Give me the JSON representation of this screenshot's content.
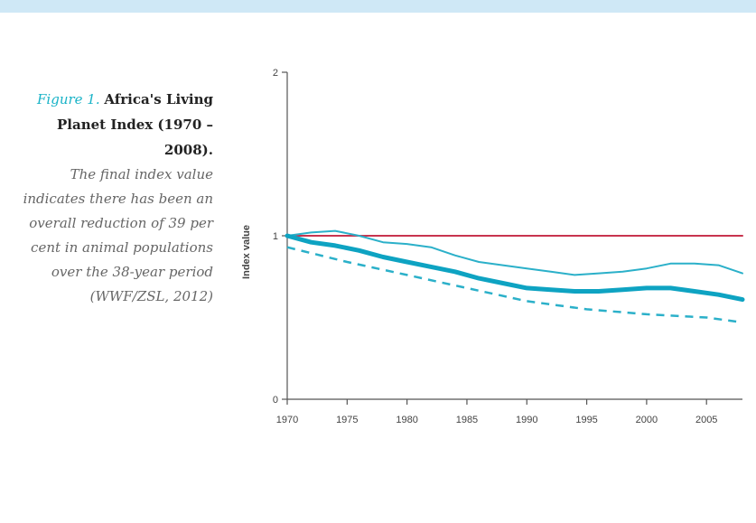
{
  "caption": {
    "figure_label": "Figure 1.",
    "title": "Africa's Living Planet Index (1970 – 2008).",
    "description": "The final index value indicates there has been an overall reduction of 39 per cent in animal populations over the 38-year period (WWF/ZSL, 2012)"
  },
  "chart_data": {
    "type": "line",
    "title": "",
    "xlabel": "",
    "ylabel": "Index value",
    "xlim": [
      1970,
      2008
    ],
    "ylim": [
      0,
      2
    ],
    "x_ticks": [
      "1970",
      "1975",
      "1980",
      "1985",
      "1990",
      "1995",
      "2000",
      "2005"
    ],
    "y_ticks": [
      "0",
      "1",
      "2"
    ],
    "grid": false,
    "legend": "none",
    "series": [
      {
        "color": "#c8344f",
        "style": "solid",
        "x": [
          1970,
          2008
        ],
        "y": [
          1.0,
          1.0
        ]
      },
      {
        "color": "#2bb0c9",
        "style": "solid",
        "x": [
          1970,
          1972,
          1974,
          1976,
          1978,
          1980,
          1982,
          1984,
          1986,
          1988,
          1990,
          1992,
          1994,
          1996,
          1998,
          2000,
          2002,
          2004,
          2006,
          2008
        ],
        "y": [
          1.0,
          1.02,
          1.03,
          1.0,
          0.96,
          0.95,
          0.93,
          0.88,
          0.84,
          0.82,
          0.8,
          0.78,
          0.76,
          0.77,
          0.78,
          0.8,
          0.83,
          0.83,
          0.82,
          0.77
        ]
      },
      {
        "color": "#0ea3c2",
        "style": "solid-thick",
        "x": [
          1970,
          1972,
          1974,
          1976,
          1978,
          1980,
          1982,
          1984,
          1986,
          1988,
          1990,
          1992,
          1994,
          1996,
          1998,
          2000,
          2002,
          2004,
          2006,
          2008
        ],
        "y": [
          1.0,
          0.96,
          0.94,
          0.91,
          0.87,
          0.84,
          0.81,
          0.78,
          0.74,
          0.71,
          0.68,
          0.67,
          0.66,
          0.66,
          0.67,
          0.68,
          0.68,
          0.66,
          0.64,
          0.61
        ]
      },
      {
        "color": "#2bb0c9",
        "style": "dashed",
        "x": [
          1970,
          1975,
          1980,
          1985,
          1990,
          1995,
          2000,
          2005,
          2008
        ],
        "y": [
          0.93,
          0.84,
          0.76,
          0.68,
          0.6,
          0.55,
          0.52,
          0.5,
          0.47
        ]
      }
    ]
  }
}
